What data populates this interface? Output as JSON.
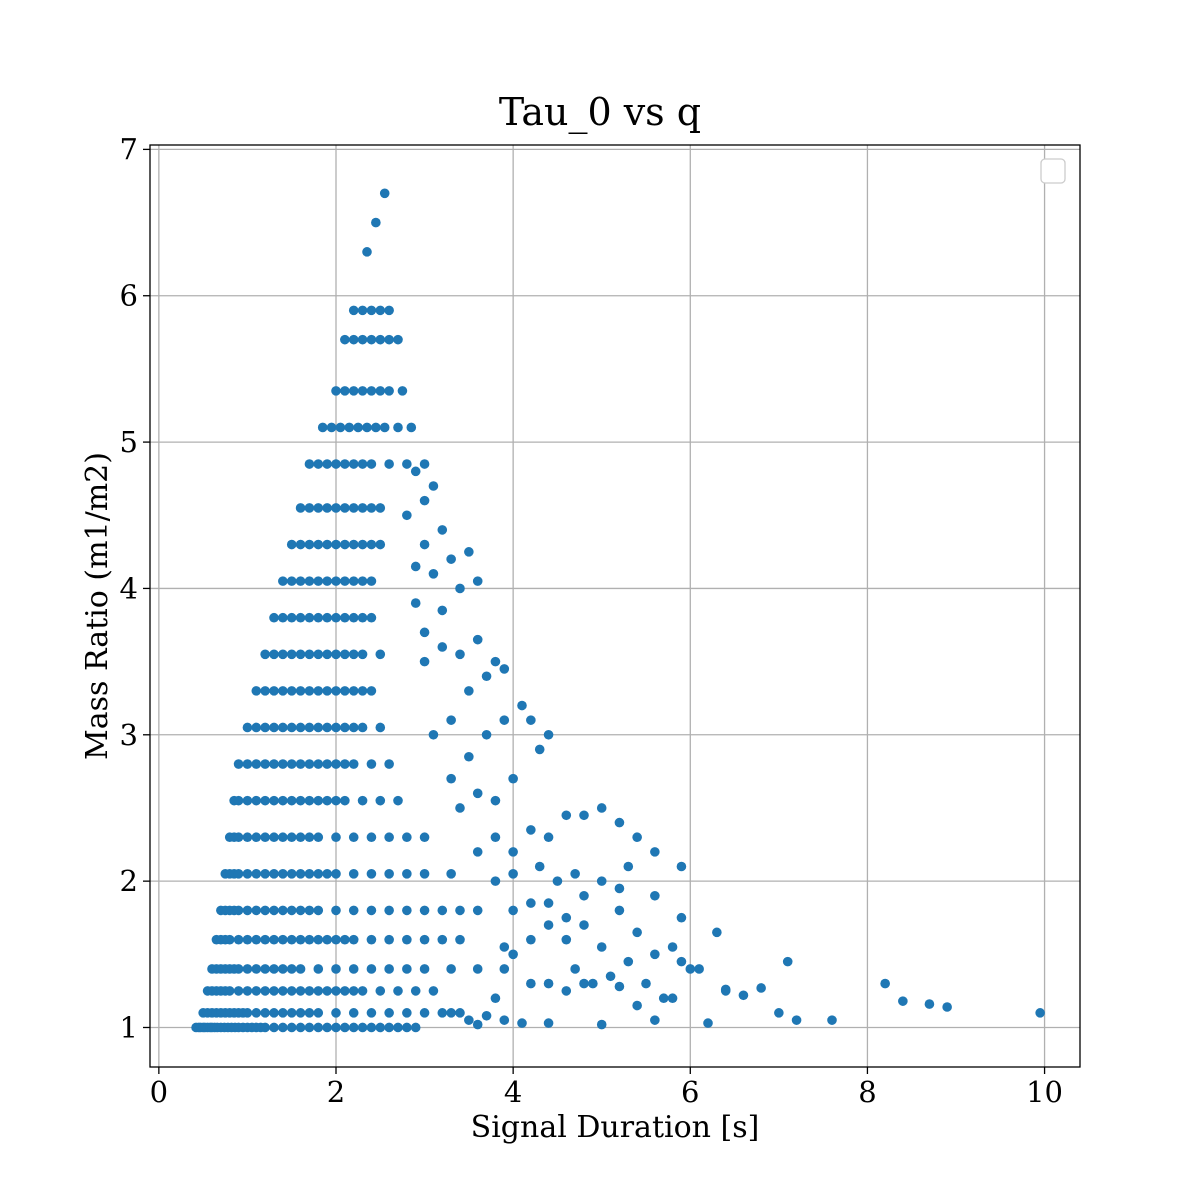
{
  "chart_data": {
    "type": "scatter",
    "title": "Tau_0 vs q",
    "xlabel": "Signal Duration [s]",
    "ylabel": "Mass Ratio (m1/m2)",
    "xlim": [
      -0.1,
      10.4
    ],
    "ylim": [
      0.73,
      7.03
    ],
    "xticks": [
      "0",
      "2",
      "4",
      "6",
      "8",
      "10"
    ],
    "yticks": [
      "1",
      "2",
      "3",
      "4",
      "5",
      "6",
      "7"
    ],
    "grid": true,
    "legend": "upper-right (empty)",
    "color": "#1f77b4",
    "series": [
      {
        "x": [
          0.42,
          0.45,
          0.47,
          0.5,
          0.52,
          0.55,
          0.58,
          0.6,
          0.63,
          0.66,
          0.7,
          0.74,
          0.78,
          0.82,
          0.86,
          0.9,
          0.95,
          1.0,
          1.05,
          1.1,
          1.15,
          1.2,
          1.3,
          1.4,
          1.5,
          1.6,
          1.7,
          1.8,
          1.9,
          2.0,
          2.1,
          2.2,
          2.3,
          2.4,
          2.5,
          2.6,
          2.7,
          2.8,
          2.9,
          0.5,
          0.55,
          0.6,
          0.65,
          0.7,
          0.75,
          0.8,
          0.85,
          0.9,
          0.95,
          1.0,
          1.1,
          1.2,
          1.3,
          1.4,
          1.5,
          1.6,
          1.7,
          1.8,
          2.0,
          2.2,
          2.4,
          2.6,
          2.8,
          3.0,
          3.2,
          3.4,
          0.55,
          0.6,
          0.65,
          0.7,
          0.75,
          0.8,
          0.9,
          1.0,
          1.1,
          1.2,
          1.3,
          1.4,
          1.5,
          1.6,
          1.7,
          1.8,
          1.9,
          2.0,
          2.1,
          2.2,
          2.3,
          2.5,
          2.7,
          2.9,
          3.1,
          0.6,
          0.65,
          0.7,
          0.75,
          0.8,
          0.85,
          0.9,
          1.0,
          1.1,
          1.2,
          1.3,
          1.4,
          1.5,
          1.6,
          1.8,
          2.0,
          2.2,
          2.4,
          2.6,
          2.8,
          3.0,
          3.3,
          3.6,
          3.9,
          0.65,
          0.7,
          0.75,
          0.8,
          0.9,
          1.0,
          1.1,
          1.2,
          1.3,
          1.4,
          1.5,
          1.6,
          1.7,
          1.8,
          1.9,
          2.0,
          2.1,
          2.2,
          2.4,
          2.6,
          2.8,
          3.0,
          3.2,
          3.4,
          0.7,
          0.75,
          0.8,
          0.85,
          0.9,
          1.0,
          1.1,
          1.2,
          1.3,
          1.4,
          1.5,
          1.6,
          1.7,
          1.8,
          2.0,
          2.2,
          2.4,
          2.6,
          2.8,
          3.0,
          3.2,
          3.4,
          3.6,
          0.75,
          0.8,
          0.85,
          0.9,
          1.0,
          1.1,
          1.2,
          1.3,
          1.4,
          1.5,
          1.6,
          1.7,
          1.8,
          1.9,
          2.0,
          2.2,
          2.4,
          2.6,
          2.8,
          3.0,
          3.3,
          0.8,
          0.85,
          0.9,
          1.0,
          1.1,
          1.2,
          1.3,
          1.4,
          1.5,
          1.6,
          1.7,
          1.8,
          2.0,
          2.2,
          2.4,
          2.6,
          2.8,
          3.0,
          0.85,
          0.9,
          1.0,
          1.1,
          1.2,
          1.3,
          1.4,
          1.5,
          1.6,
          1.7,
          1.8,
          1.9,
          2.0,
          2.1,
          2.3,
          2.5,
          2.7,
          0.9,
          1.0,
          1.1,
          1.2,
          1.3,
          1.4,
          1.5,
          1.6,
          1.7,
          1.8,
          1.9,
          2.0,
          2.1,
          2.2,
          2.4,
          2.6,
          1.0,
          1.1,
          1.2,
          1.3,
          1.4,
          1.5,
          1.6,
          1.7,
          1.8,
          1.9,
          2.0,
          2.1,
          2.2,
          2.3,
          2.5,
          1.1,
          1.2,
          1.3,
          1.4,
          1.5,
          1.6,
          1.7,
          1.8,
          1.9,
          2.0,
          2.1,
          2.2,
          2.3,
          2.4,
          1.2,
          1.3,
          1.4,
          1.5,
          1.6,
          1.7,
          1.8,
          1.9,
          2.0,
          2.1,
          2.2,
          2.3,
          2.5,
          1.3,
          1.4,
          1.5,
          1.6,
          1.7,
          1.8,
          1.9,
          2.0,
          2.1,
          2.2,
          2.3,
          2.4,
          1.4,
          1.5,
          1.6,
          1.7,
          1.8,
          1.9,
          2.0,
          2.1,
          2.2,
          2.3,
          2.4,
          1.5,
          1.6,
          1.7,
          1.8,
          1.9,
          2.0,
          2.1,
          2.2,
          2.3,
          2.4,
          2.5,
          1.6,
          1.7,
          1.8,
          1.9,
          2.0,
          2.1,
          2.2,
          2.3,
          2.4,
          2.5,
          1.7,
          1.8,
          1.9,
          2.0,
          2.1,
          2.2,
          2.3,
          2.4,
          2.6,
          2.8,
          1.85,
          1.95,
          2.05,
          2.15,
          2.25,
          2.35,
          2.45,
          2.55,
          2.7,
          2.85,
          2.0,
          2.1,
          2.2,
          2.3,
          2.4,
          2.5,
          2.6,
          2.75,
          2.1,
          2.2,
          2.3,
          2.4,
          2.5,
          2.6,
          2.7,
          2.2,
          2.3,
          2.4,
          2.5,
          2.6,
          2.35,
          2.45,
          2.55,
          3.5,
          3.7,
          3.9,
          4.1,
          3.3,
          3.6,
          3.8,
          4.4,
          4.6,
          4.8,
          5.0,
          5.2,
          5.4,
          5.6,
          5.8,
          6.0,
          6.2,
          6.4,
          6.6,
          6.8,
          7.0,
          7.2,
          7.6,
          8.2,
          8.4,
          8.7,
          8.9,
          9.95,
          4.2,
          4.4,
          4.7,
          4.9,
          5.1,
          5.3,
          5.5,
          5.7,
          5.9,
          6.1,
          6.4,
          7.1,
          3.9,
          4.0,
          4.2,
          4.4,
          4.6,
          4.8,
          5.0,
          5.2,
          5.4,
          5.6,
          5.8,
          4.0,
          4.2,
          4.4,
          4.6,
          4.8,
          5.2,
          5.6,
          5.9,
          6.3,
          3.8,
          4.0,
          4.3,
          4.5,
          4.7,
          5.0,
          5.3,
          5.6,
          5.9,
          3.6,
          3.8,
          4.0,
          4.2,
          4.4,
          4.6,
          4.8,
          5.0,
          5.2,
          5.4,
          3.4,
          3.6,
          3.8,
          4.0,
          4.3,
          3.3,
          3.5,
          3.7,
          3.9,
          4.1,
          4.4,
          3.1,
          3.3,
          3.5,
          3.7,
          3.9,
          4.2,
          3.0,
          3.2,
          3.4,
          3.6,
          3.8,
          3.0,
          3.2,
          3.4,
          3.6,
          2.9,
          3.1,
          3.3,
          3.5,
          2.9,
          3.0,
          3.2,
          2.8,
          3.0,
          3.1,
          2.9,
          3.0
        ],
        "y": [
          1.0,
          1.0,
          1.0,
          1.0,
          1.0,
          1.0,
          1.0,
          1.0,
          1.0,
          1.0,
          1.0,
          1.0,
          1.0,
          1.0,
          1.0,
          1.0,
          1.0,
          1.0,
          1.0,
          1.0,
          1.0,
          1.0,
          1.0,
          1.0,
          1.0,
          1.0,
          1.0,
          1.0,
          1.0,
          1.0,
          1.0,
          1.0,
          1.0,
          1.0,
          1.0,
          1.0,
          1.0,
          1.0,
          1.0,
          1.1,
          1.1,
          1.1,
          1.1,
          1.1,
          1.1,
          1.1,
          1.1,
          1.1,
          1.1,
          1.1,
          1.1,
          1.1,
          1.1,
          1.1,
          1.1,
          1.1,
          1.1,
          1.1,
          1.1,
          1.1,
          1.1,
          1.1,
          1.1,
          1.1,
          1.1,
          1.1,
          1.25,
          1.25,
          1.25,
          1.25,
          1.25,
          1.25,
          1.25,
          1.25,
          1.25,
          1.25,
          1.25,
          1.25,
          1.25,
          1.25,
          1.25,
          1.25,
          1.25,
          1.25,
          1.25,
          1.25,
          1.25,
          1.25,
          1.25,
          1.25,
          1.25,
          1.4,
          1.4,
          1.4,
          1.4,
          1.4,
          1.4,
          1.4,
          1.4,
          1.4,
          1.4,
          1.4,
          1.4,
          1.4,
          1.4,
          1.4,
          1.4,
          1.4,
          1.4,
          1.4,
          1.4,
          1.4,
          1.4,
          1.4,
          1.4,
          1.6,
          1.6,
          1.6,
          1.6,
          1.6,
          1.6,
          1.6,
          1.6,
          1.6,
          1.6,
          1.6,
          1.6,
          1.6,
          1.6,
          1.6,
          1.6,
          1.6,
          1.6,
          1.6,
          1.6,
          1.6,
          1.6,
          1.6,
          1.6,
          1.8,
          1.8,
          1.8,
          1.8,
          1.8,
          1.8,
          1.8,
          1.8,
          1.8,
          1.8,
          1.8,
          1.8,
          1.8,
          1.8,
          1.8,
          1.8,
          1.8,
          1.8,
          1.8,
          1.8,
          1.8,
          1.8,
          1.8,
          2.05,
          2.05,
          2.05,
          2.05,
          2.05,
          2.05,
          2.05,
          2.05,
          2.05,
          2.05,
          2.05,
          2.05,
          2.05,
          2.05,
          2.05,
          2.05,
          2.05,
          2.05,
          2.05,
          2.05,
          2.05,
          2.3,
          2.3,
          2.3,
          2.3,
          2.3,
          2.3,
          2.3,
          2.3,
          2.3,
          2.3,
          2.3,
          2.3,
          2.3,
          2.3,
          2.3,
          2.3,
          2.3,
          2.3,
          2.55,
          2.55,
          2.55,
          2.55,
          2.55,
          2.55,
          2.55,
          2.55,
          2.55,
          2.55,
          2.55,
          2.55,
          2.55,
          2.55,
          2.55,
          2.55,
          2.55,
          2.8,
          2.8,
          2.8,
          2.8,
          2.8,
          2.8,
          2.8,
          2.8,
          2.8,
          2.8,
          2.8,
          2.8,
          2.8,
          2.8,
          2.8,
          2.8,
          3.05,
          3.05,
          3.05,
          3.05,
          3.05,
          3.05,
          3.05,
          3.05,
          3.05,
          3.05,
          3.05,
          3.05,
          3.05,
          3.05,
          3.05,
          3.3,
          3.3,
          3.3,
          3.3,
          3.3,
          3.3,
          3.3,
          3.3,
          3.3,
          3.3,
          3.3,
          3.3,
          3.3,
          3.3,
          3.55,
          3.55,
          3.55,
          3.55,
          3.55,
          3.55,
          3.55,
          3.55,
          3.55,
          3.55,
          3.55,
          3.55,
          3.55,
          3.8,
          3.8,
          3.8,
          3.8,
          3.8,
          3.8,
          3.8,
          3.8,
          3.8,
          3.8,
          3.8,
          3.8,
          4.05,
          4.05,
          4.05,
          4.05,
          4.05,
          4.05,
          4.05,
          4.05,
          4.05,
          4.05,
          4.05,
          4.3,
          4.3,
          4.3,
          4.3,
          4.3,
          4.3,
          4.3,
          4.3,
          4.3,
          4.3,
          4.3,
          4.55,
          4.55,
          4.55,
          4.55,
          4.55,
          4.55,
          4.55,
          4.55,
          4.55,
          4.55,
          4.85,
          4.85,
          4.85,
          4.85,
          4.85,
          4.85,
          4.85,
          4.85,
          4.85,
          4.85,
          5.1,
          5.1,
          5.1,
          5.1,
          5.1,
          5.1,
          5.1,
          5.1,
          5.1,
          5.1,
          5.35,
          5.35,
          5.35,
          5.35,
          5.35,
          5.35,
          5.35,
          5.35,
          5.7,
          5.7,
          5.7,
          5.7,
          5.7,
          5.7,
          5.7,
          5.9,
          5.9,
          5.9,
          5.9,
          5.9,
          6.3,
          6.5,
          6.7,
          1.05,
          1.08,
          1.05,
          1.03,
          1.1,
          1.02,
          1.2,
          1.03,
          1.25,
          1.3,
          1.02,
          1.28,
          1.15,
          1.05,
          1.2,
          1.4,
          1.03,
          1.26,
          1.22,
          1.27,
          1.1,
          1.05,
          1.05,
          1.3,
          1.18,
          1.16,
          1.14,
          1.1,
          1.3,
          1.3,
          1.4,
          1.3,
          1.35,
          1.45,
          1.3,
          1.2,
          1.45,
          1.4,
          1.25,
          1.45,
          1.55,
          1.5,
          1.6,
          1.7,
          1.6,
          1.7,
          1.55,
          1.8,
          1.65,
          1.5,
          1.55,
          1.8,
          1.85,
          1.85,
          1.75,
          1.9,
          1.95,
          1.9,
          1.75,
          1.65,
          2.0,
          2.05,
          2.1,
          2.0,
          2.05,
          2.0,
          2.1,
          2.2,
          2.1,
          2.2,
          2.3,
          2.2,
          2.35,
          2.3,
          2.45,
          2.45,
          2.5,
          2.4,
          2.3,
          2.5,
          2.6,
          2.55,
          2.7,
          2.9,
          2.7,
          2.85,
          3.0,
          3.1,
          3.2,
          3.0,
          3.0,
          3.1,
          3.3,
          3.4,
          3.45,
          3.1,
          3.5,
          3.6,
          3.55,
          3.65,
          3.5,
          3.7,
          3.85,
          4.0,
          4.05,
          3.9,
          4.1,
          4.2,
          4.25,
          4.15,
          4.3,
          4.4,
          4.5,
          4.6,
          4.7,
          4.8,
          4.85
        ]
      }
    ]
  }
}
